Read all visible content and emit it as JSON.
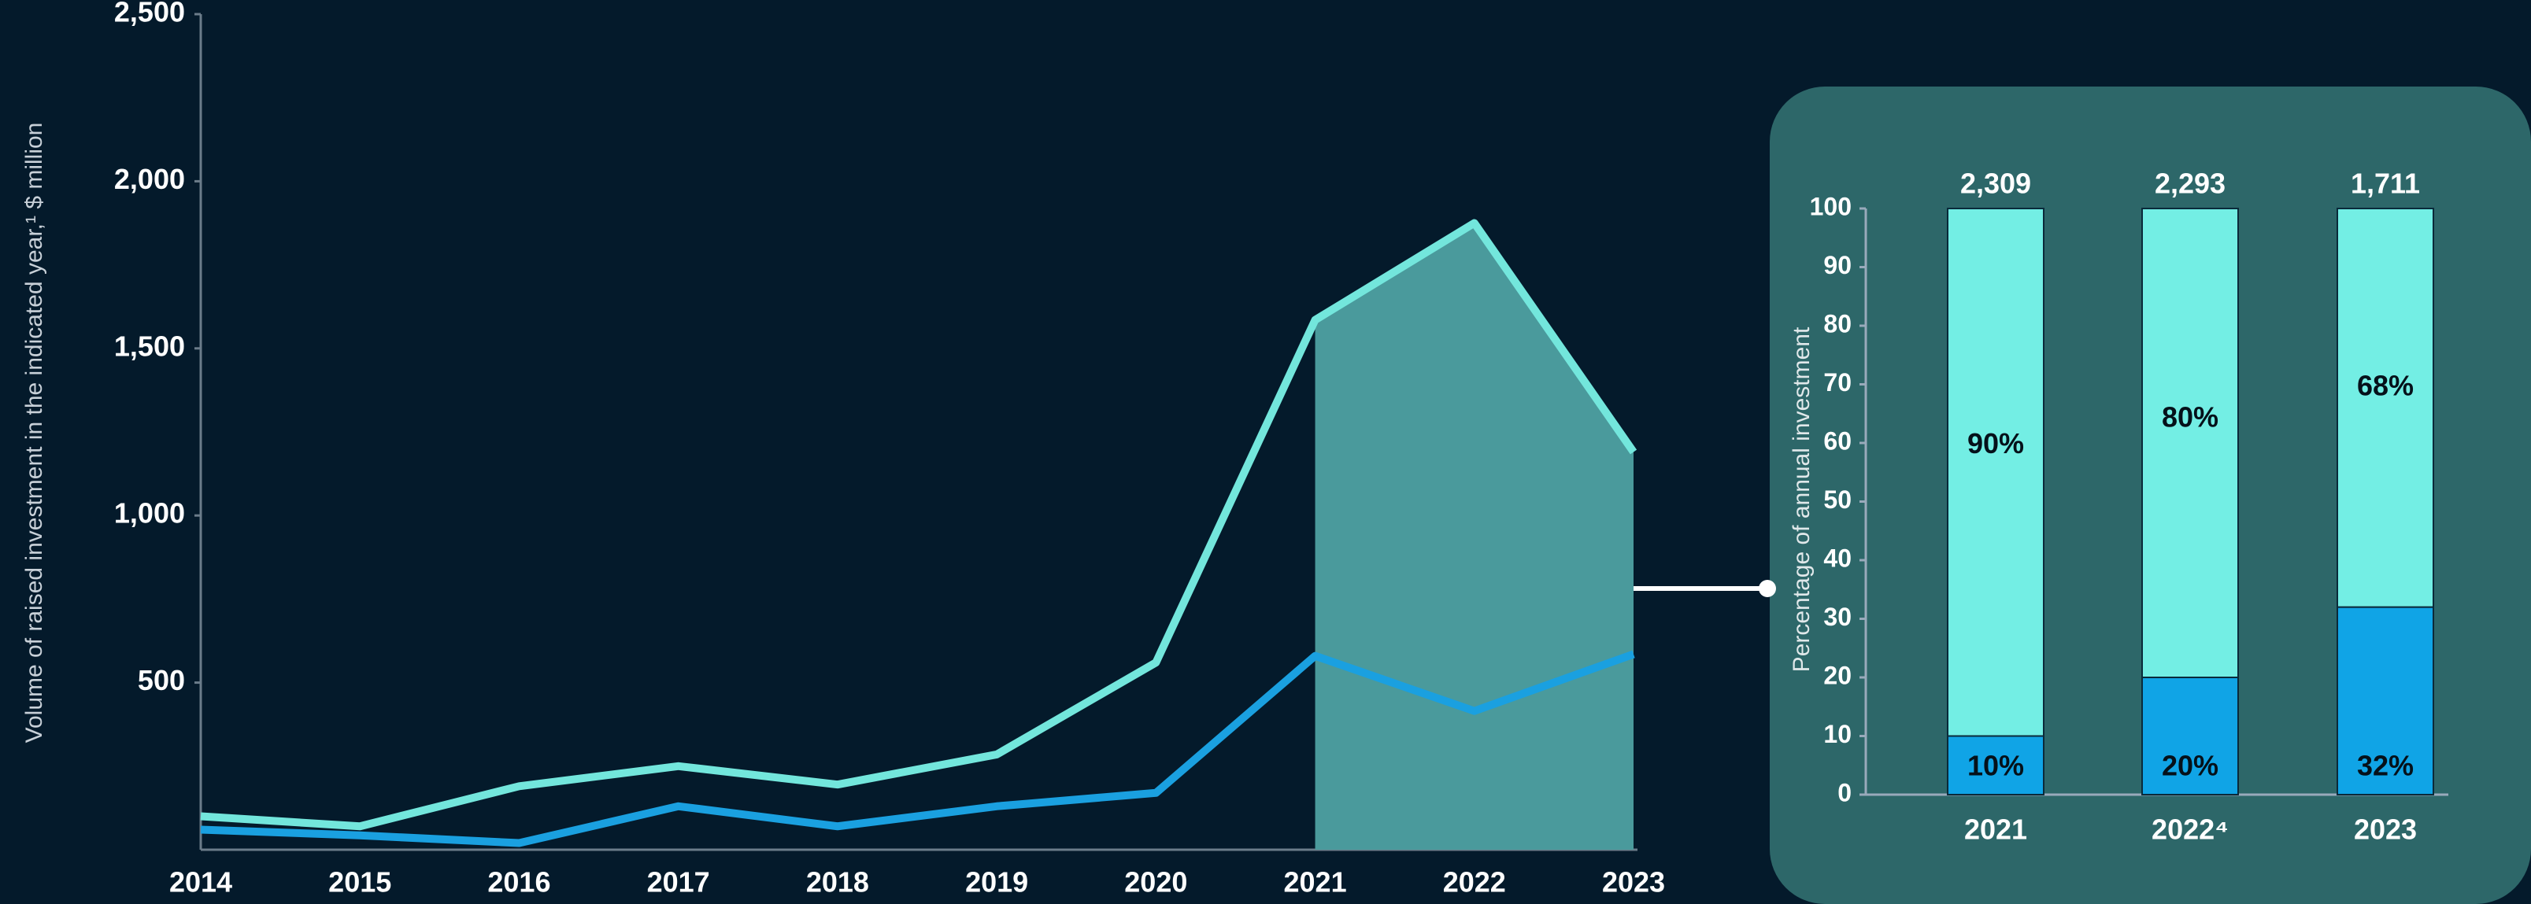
{
  "chart_data": [
    {
      "type": "line",
      "y_label": "Volume of raised investment in the indicated year,¹ $ million",
      "categories": [
        "2014",
        "2015",
        "2016",
        "2017",
        "2018",
        "2019",
        "2020",
        "2021",
        "2022",
        "2023"
      ],
      "series": [
        {
          "color": "#73e6dc",
          "values": [
            100,
            70,
            190,
            250,
            195,
            285,
            560,
            1585,
            1875,
            1190
          ]
        },
        {
          "color": "#1aa0e0",
          "values": [
            60,
            43,
            20,
            130,
            70,
            130,
            170,
            580,
            415,
            585
          ]
        }
      ],
      "highlight_color": "#4a9a9c",
      "ylim": [
        0,
        2500
      ],
      "yticks": [
        {
          "value": 500,
          "label": "500"
        },
        {
          "value": 1000,
          "label": "1,000"
        },
        {
          "value": 1500,
          "label": "1,500"
        },
        {
          "value": 2000,
          "label": "2,000"
        },
        {
          "value": 2500,
          "label": "2,500"
        }
      ]
    },
    {
      "type": "stacked_bar",
      "y_label": "Percentage of annual investment",
      "categories": [
        "2021",
        "2022⁴",
        "2023"
      ],
      "series": [
        {
          "color": "#10a4e6",
          "values": [
            10,
            20,
            32
          ],
          "value_labels": [
            "10%",
            "20%",
            "32%"
          ]
        },
        {
          "color": "#73eee4",
          "values": [
            90,
            80,
            68
          ],
          "value_labels": [
            "90%",
            "80%",
            "68%"
          ]
        }
      ],
      "totals": {
        "values": [
          2309,
          2293,
          1711
        ],
        "value_labels": [
          "2,309",
          "2,293",
          "1,711"
        ]
      },
      "ylim": [
        0,
        100
      ],
      "yticks": [
        0,
        10,
        20,
        30,
        40,
        50,
        60,
        70,
        80,
        90,
        100
      ]
    }
  ]
}
